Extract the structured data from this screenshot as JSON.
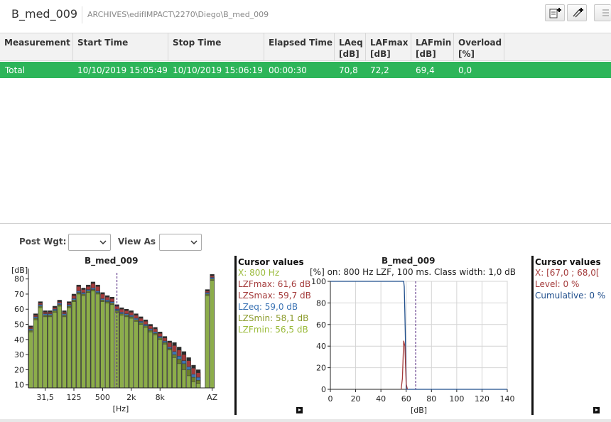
{
  "header": {
    "title": "B_med_009",
    "path": "ARCHIVES\\edifIMPACT\\2270\\Diego\\B_med_009"
  },
  "table": {
    "columns": [
      {
        "line1": "Measurement",
        "line2": ""
      },
      {
        "line1": "Start Time",
        "line2": ""
      },
      {
        "line1": "Stop Time",
        "line2": ""
      },
      {
        "line1": "Elapsed Time",
        "line2": ""
      },
      {
        "line1": "LAeq",
        "line2": "[dB]"
      },
      {
        "line1": "LAFmax",
        "line2": "[dB]"
      },
      {
        "line1": "LAFmin",
        "line2": "[dB]"
      },
      {
        "line1": "Overload",
        "line2": "[%]"
      }
    ],
    "rows": [
      [
        "Total",
        "10/10/2019 15:05:49",
        "10/10/2019 15:06:19",
        "00:00:30",
        "70,8",
        "72,2",
        "69,4",
        "0,0"
      ]
    ],
    "selected_row_color": "#2db559"
  },
  "controls": {
    "post_wgt_label": "Post Wgt:",
    "post_wgt_value": "",
    "view_as_label": "View As",
    "view_as_value": ""
  },
  "spectrum": {
    "title": "B_med_009",
    "ylabel": "[dB]",
    "xlabel": "[Hz]",
    "cursor": {
      "title": "Cursor values",
      "lines": [
        {
          "text": "X: 800 Hz",
          "color": "#9bbb3b"
        },
        {
          "text": "LZFmax: 61,6 dB",
          "color": "#a43b3b"
        },
        {
          "text": "LZSmax: 59,7 dB",
          "color": "#a43b3b"
        },
        {
          "text": "LZeq: 59,0 dB",
          "color": "#3c74b4"
        },
        {
          "text": "LZSmin: 58,1 dB",
          "color": "#8a9a2a"
        },
        {
          "text": "LZFmin: 56,5 dB",
          "color": "#9bbb3b"
        }
      ]
    }
  },
  "distribution": {
    "title": "B_med_009",
    "subtitle": "[%] on: 800 Hz  LZF, 100 ms. Class width: 1,0 dB",
    "xlabel": "[dB]",
    "cursor": {
      "title": "Cursor values",
      "lines": [
        {
          "text": "X: [67,0 ; 68,0[",
          "color": "#a43b3b"
        },
        {
          "text": "Level: 0 %",
          "color": "#a43b3b"
        },
        {
          "text": "Cumulative: 0 %",
          "color": "#1f4e8c"
        }
      ]
    }
  },
  "chart_data": [
    {
      "type": "bar",
      "title": "B_med_009",
      "ylabel": "[dB]",
      "xlabel": "[Hz]",
      "ylim": [
        8,
        85
      ],
      "yticks": [
        10,
        20,
        30,
        40,
        50,
        60,
        70,
        80
      ],
      "xtick_labels": [
        "31,5",
        "125",
        "500",
        "2k",
        "8k",
        "AZ"
      ],
      "cursor_band": "800 Hz",
      "series": [
        {
          "name": "LZFmin",
          "color": "#8cad4a",
          "values": [
            45,
            53,
            61,
            55,
            55,
            58,
            62,
            55,
            61,
            65,
            70,
            69,
            71,
            72,
            70,
            65,
            64,
            63,
            58,
            56,
            55,
            54,
            52,
            50,
            48,
            45,
            43,
            40,
            37,
            33,
            28,
            24,
            20,
            16,
            12,
            11,
            69,
            79
          ]
        },
        {
          "name": "LZSmin",
          "color": "#6b7f2a",
          "values": [
            46,
            54,
            62,
            56,
            56,
            59,
            63,
            56,
            62,
            66,
            71,
            70,
            72,
            73,
            71,
            66,
            65,
            64,
            59,
            57,
            56,
            55,
            53,
            51,
            49,
            46,
            44,
            41,
            38,
            34,
            30,
            27,
            24,
            20,
            15,
            13,
            70,
            80
          ]
        },
        {
          "name": "LZeq",
          "color": "#3c74b4",
          "values": [
            47,
            55,
            63,
            57,
            57,
            60,
            64,
            57,
            63,
            67,
            72,
            71,
            73,
            74,
            72,
            67,
            66,
            65,
            60,
            58,
            57,
            56,
            54,
            52,
            50,
            47,
            45,
            42,
            39,
            35,
            32,
            29,
            26,
            22,
            17,
            15,
            71,
            81
          ]
        },
        {
          "name": "LZSmax",
          "color": "#a43b3b",
          "values": [
            48,
            56,
            64,
            58,
            58,
            61,
            65,
            58,
            64,
            69,
            75,
            73,
            75,
            77,
            75,
            70,
            68,
            67,
            62,
            60,
            59,
            58,
            56,
            54,
            52,
            49,
            47,
            44,
            41,
            38,
            36,
            33,
            30,
            26,
            21,
            18,
            72,
            82
          ]
        },
        {
          "name": "LZFmax",
          "color": "#2a2a2a",
          "values": [
            49,
            57,
            65,
            59,
            59,
            62,
            66,
            59,
            65,
            70,
            76,
            74,
            76,
            78,
            76,
            71,
            69,
            68,
            63,
            61,
            60,
            59,
            57,
            55,
            53,
            50,
            48,
            45,
            42,
            39,
            38,
            35,
            32,
            28,
            23,
            20,
            73,
            83
          ]
        }
      ]
    },
    {
      "type": "line",
      "title": "B_med_009",
      "subtitle": "[%] on: 800 Hz  LZF, 100 ms. Class width: 1,0 dB",
      "xlabel": "[dB]",
      "xlim": [
        0,
        140
      ],
      "ylim": [
        0,
        100
      ],
      "xticks": [
        0,
        20,
        40,
        60,
        80,
        100,
        120,
        140
      ],
      "yticks": [
        0,
        20,
        40,
        60,
        80,
        100
      ],
      "cursor_x": 67.5,
      "series": [
        {
          "name": "Cumulative",
          "color": "#1f4e8c",
          "x": [
            0,
            58,
            58.5,
            59,
            59.5,
            60,
            60,
            140
          ],
          "y": [
            100,
            100,
            95,
            70,
            40,
            10,
            0,
            0
          ]
        },
        {
          "name": "Level",
          "color": "#a43b3b",
          "x": [
            56,
            57,
            58,
            59,
            60,
            61
          ],
          "y": [
            0,
            10,
            45,
            40,
            5,
            0
          ]
        }
      ]
    }
  ]
}
